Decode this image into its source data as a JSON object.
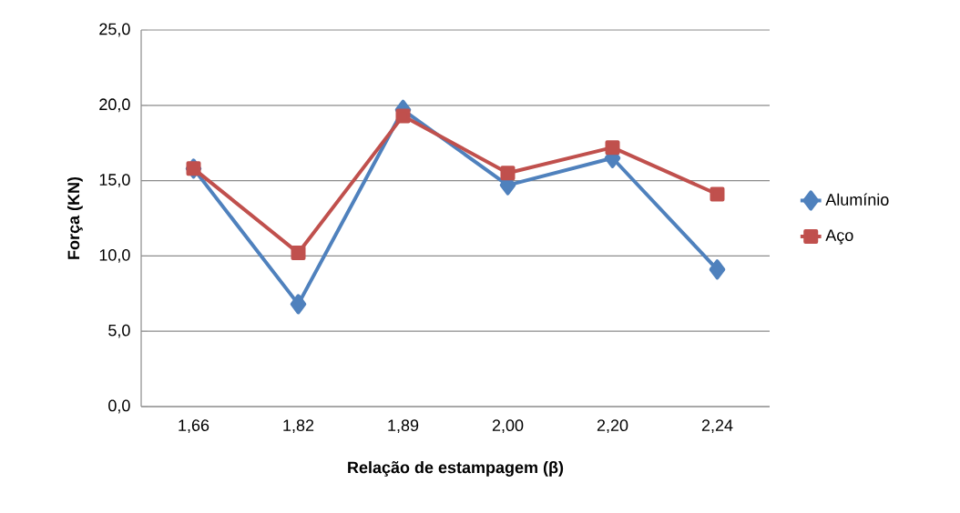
{
  "chart_data": {
    "type": "line",
    "xlabel": "Relação de estampagem (β)",
    "ylabel": "Força (KN)",
    "categories": [
      "1,66",
      "1,82",
      "1,89",
      "2,00",
      "2,20",
      "2,24"
    ],
    "series": [
      {
        "name": "Alumínio",
        "color": "#4f81bd",
        "marker": "diamond",
        "values": [
          15.8,
          6.8,
          19.7,
          14.7,
          16.5,
          9.1
        ]
      },
      {
        "name": "Aço",
        "color": "#c0504d",
        "marker": "square",
        "values": [
          15.8,
          10.2,
          19.3,
          15.5,
          17.2,
          14.1
        ]
      }
    ],
    "ylim": [
      0,
      25
    ],
    "yticks": [
      {
        "value": 0,
        "label": "0,0"
      },
      {
        "value": 5,
        "label": "5,0"
      },
      {
        "value": 10,
        "label": "10,0"
      },
      {
        "value": 15,
        "label": "15,0"
      },
      {
        "value": 20,
        "label": "20,0"
      },
      {
        "value": 25,
        "label": "25,0"
      }
    ],
    "grid": "y",
    "legend": "right",
    "line_style": "solid"
  }
}
